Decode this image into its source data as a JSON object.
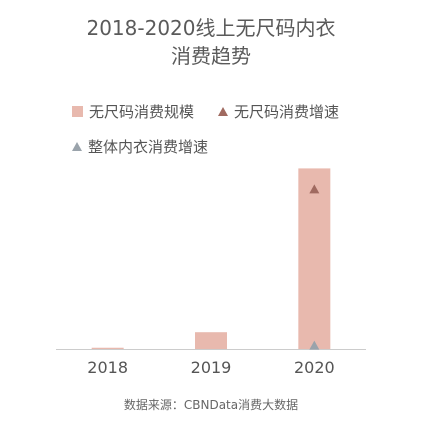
{
  "chart_data": {
    "type": "bar",
    "title_lines": [
      "2018-2020线上无尺码内衣",
      "消费趋势"
    ],
    "categories": [
      "2018",
      "2019",
      "2020"
    ],
    "series": [
      {
        "name": "无尺码消费规模",
        "kind": "bar",
        "values": [
          0.3,
          4.0,
          43.0
        ]
      },
      {
        "name": "无尺码消费增速",
        "kind": "marker",
        "values": [
          null,
          null,
          38
        ]
      },
      {
        "name": "整体内衣消费增速",
        "kind": "marker",
        "values": [
          null,
          null,
          0.8
        ]
      }
    ],
    "ylim": [
      0,
      45
    ],
    "grid": false,
    "legend_position": "top",
    "source": "数据来源：CBNData消费大数据"
  },
  "colors": {
    "bar": "#e8b9ae",
    "triangle_brown": "#a06a60",
    "triangle_gray": "#9aa3ab",
    "axis": "#cccccc"
  }
}
